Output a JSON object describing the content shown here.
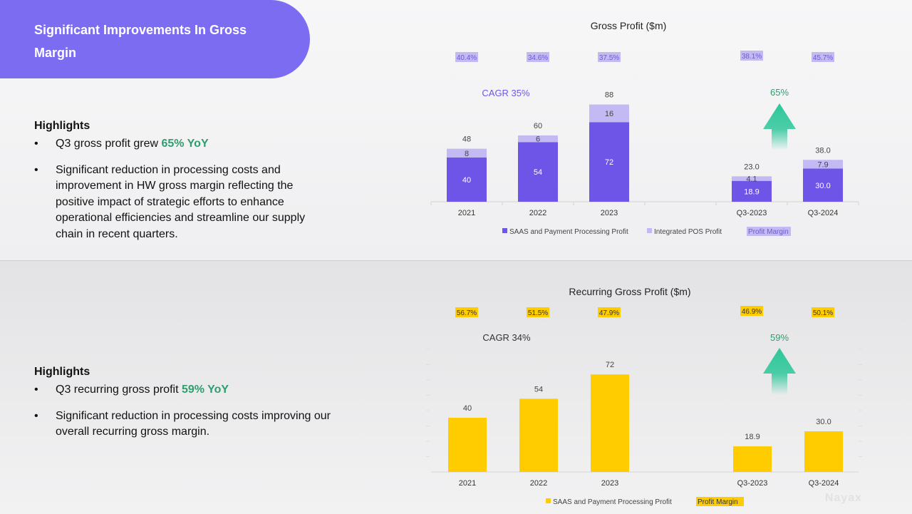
{
  "header": {
    "title": "Significant Improvements In Gross Margin"
  },
  "top_section": {
    "highlights_heading": "Highlights",
    "bullet1_prefix": "Q3 gross profit grew ",
    "bullet1_emphasis": "65% YoY",
    "bullet2": "Significant reduction in processing costs and improvement in HW gross margin reflecting the positive impact of strategic efforts to enhance operational efficiencies and streamline our supply chain in recent quarters."
  },
  "bottom_section": {
    "highlights_heading": "Highlights",
    "bullet1_prefix": "Q3 recurring gross profit ",
    "bullet1_emphasis": "59% YoY",
    "bullet2": "Significant reduction in processing costs improving our overall recurring gross margin."
  },
  "watermark": "Nayax",
  "colors": {
    "accent_purple": "#7b6cf2",
    "saas_purple": "#6e55e8",
    "pos_lavender": "#c3baf4",
    "gold": "#ffcc00",
    "green": "#2e9e6e",
    "arrow_green": "#2ec79a"
  },
  "chart_data": [
    {
      "type": "bar",
      "stacked": true,
      "title": "Gross Profit ($m)",
      "categories": [
        "2021",
        "2022",
        "2023",
        "Q3-2023",
        "Q3-2024"
      ],
      "series": [
        {
          "name": "SAAS and Payment Processing Profit",
          "values": [
            40,
            54,
            72,
            18.9,
            30.0
          ],
          "labels": [
            "40",
            "54",
            "72",
            "18.9",
            "30.0"
          ]
        },
        {
          "name": "Integrated POS Profit",
          "values": [
            8,
            6,
            16,
            4.1,
            7.9
          ],
          "labels": [
            "8",
            "6",
            "16",
            "4.1",
            "7.9"
          ]
        }
      ],
      "totals": [
        "48",
        "60",
        "88",
        "23.0",
        "38.0"
      ],
      "profit_margin": [
        "40.4%",
        "34.6%",
        "37.5%",
        "38.1%",
        "45.7%"
      ],
      "profit_margin_legend": "Profit Margin",
      "cagr_label": "CAGR 35%",
      "growth_label": "65%",
      "ylim": [
        0,
        92
      ]
    },
    {
      "type": "bar",
      "stacked": false,
      "title": "Recurring Gross Profit ($m)",
      "categories": [
        "2021",
        "2022",
        "2023",
        "Q3-2023",
        "Q3-2024"
      ],
      "series": [
        {
          "name": "SAAS and Payment Processing Profit",
          "values": [
            40,
            54,
            72,
            18.9,
            30.0
          ],
          "labels": [
            "40",
            "54",
            "72",
            "18.9",
            "30.0"
          ]
        }
      ],
      "profit_margin": [
        "56.7%",
        "51.5%",
        "47.9%",
        "46.9%",
        "50.1%"
      ],
      "profit_margin_legend": "Profit Margin",
      "cagr_label": "CAGR 34%",
      "growth_label": "59%",
      "ylim": [
        0,
        80
      ]
    }
  ]
}
